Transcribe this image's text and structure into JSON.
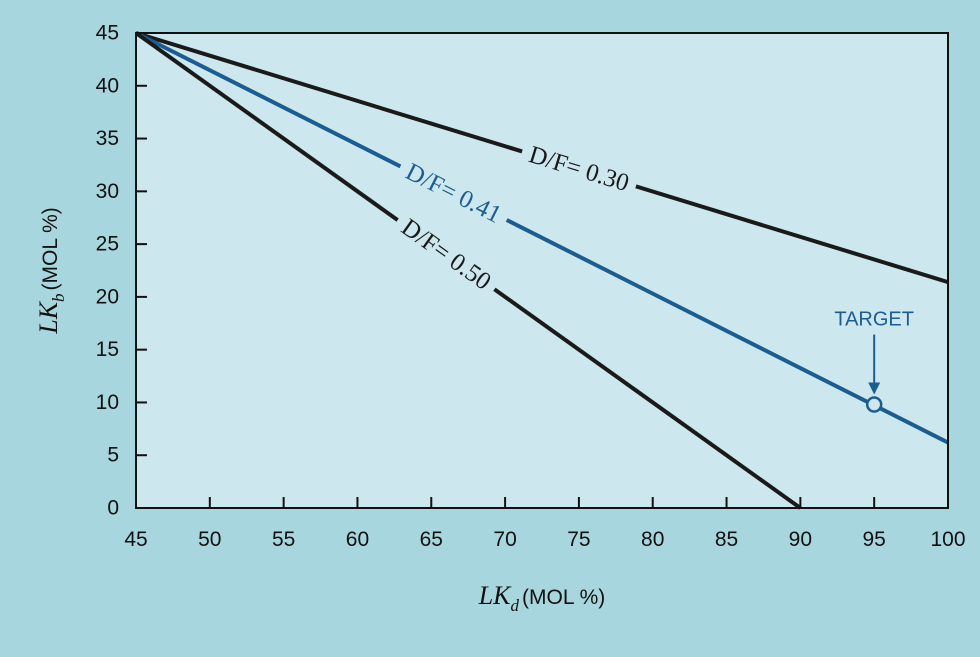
{
  "colors": {
    "page_background": "#a8d6df",
    "plot_background": "#cde7ee",
    "black_series": "#1a1a1a",
    "blue_series": "#1c5d91"
  },
  "chart_data": {
    "type": "line",
    "grid": false,
    "legend": "none",
    "xlabel": {
      "main": "LK",
      "sub": "d",
      "unit": "(MOL %)"
    },
    "ylabel": {
      "main": "LK",
      "sub": "b",
      "unit": "(MOL %)"
    },
    "xlim": [
      45,
      100
    ],
    "ylim": [
      0,
      45
    ],
    "xticks": [
      45,
      50,
      55,
      60,
      65,
      70,
      75,
      80,
      85,
      90,
      95,
      100
    ],
    "yticks": [
      0,
      5,
      10,
      15,
      20,
      25,
      30,
      35,
      40,
      45
    ],
    "series": [
      {
        "name": "D/F= 0.30",
        "color": "#1a1a1a",
        "x": [
          45,
          100
        ],
        "y": [
          45,
          21.4
        ],
        "label_x": 75,
        "label_y": 32.1
      },
      {
        "name": "D/F= 0.41",
        "color": "#1c5d91",
        "x": [
          45,
          100
        ],
        "y": [
          45,
          6.2
        ],
        "label_x": 66.5,
        "label_y": 29.8
      },
      {
        "name": "D/F= 0.50",
        "color": "#1a1a1a",
        "x": [
          45,
          90
        ],
        "y": [
          45,
          0
        ],
        "label_x": 66,
        "label_y": 24.0
      }
    ],
    "annotations": [
      {
        "text": "TARGET",
        "x": 95,
        "y": 9.8
      }
    ]
  }
}
